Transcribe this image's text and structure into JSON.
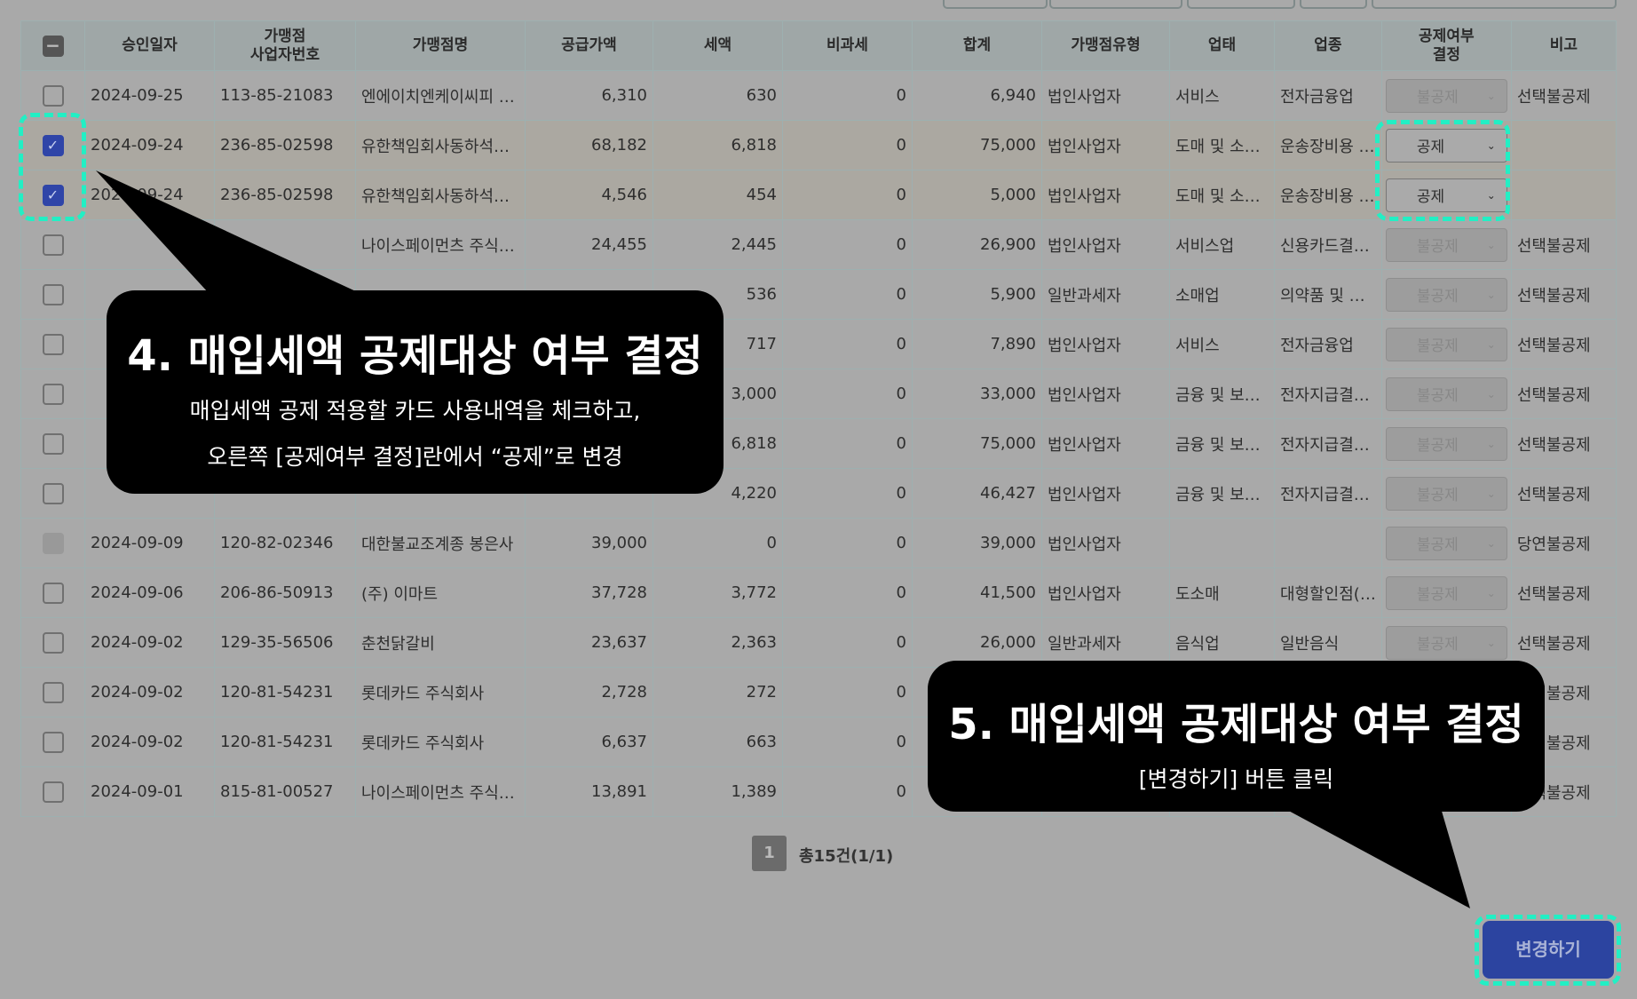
{
  "table": {
    "headers": [
      "",
      "승인일자",
      "가맹점\n사업자번호",
      "가맹점명",
      "공급가액",
      "세액",
      "비과세",
      "합계",
      "가맹점유형",
      "업태",
      "업종",
      "공제여부\n결정",
      "비고"
    ],
    "rows": [
      {
        "checked": false,
        "disabled": false,
        "date": "2024-09-25",
        "bizno": "113-85-21083",
        "name": "엔에이치엔케이씨피 …",
        "supply": "6,310",
        "tax": "630",
        "taxfree": "0",
        "total": "6,940",
        "type": "법인사업자",
        "biz": "서비스",
        "item": "전자금융업",
        "decision": "불공제",
        "decision_enabled": false,
        "note": "선택불공제"
      },
      {
        "checked": true,
        "disabled": false,
        "date": "2024-09-24",
        "bizno": "236-85-02598",
        "name": "유한책임회사동하석…",
        "supply": "68,182",
        "tax": "6,818",
        "taxfree": "0",
        "total": "75,000",
        "type": "법인사업자",
        "biz": "도매 및 소…",
        "item": "운송장비용 …",
        "decision": "공제",
        "decision_enabled": true,
        "note": ""
      },
      {
        "checked": true,
        "disabled": false,
        "date": "2024-09-24",
        "bizno": "236-85-02598",
        "name": "유한책임회사동하석…",
        "supply": "4,546",
        "tax": "454",
        "taxfree": "0",
        "total": "5,000",
        "type": "법인사업자",
        "biz": "도매 및 소…",
        "item": "운송장비용 …",
        "decision": "공제",
        "decision_enabled": true,
        "note": ""
      },
      {
        "checked": false,
        "disabled": false,
        "date": "",
        "bizno": "",
        "name": "나이스페이먼츠 주식…",
        "supply": "24,455",
        "tax": "2,445",
        "taxfree": "0",
        "total": "26,900",
        "type": "법인사업자",
        "biz": "서비스업",
        "item": "신용카드결…",
        "decision": "불공제",
        "decision_enabled": false,
        "note": "선택불공제"
      },
      {
        "checked": false,
        "disabled": false,
        "date": "",
        "bizno": "",
        "name": "",
        "supply": "",
        "tax": "536",
        "taxfree": "0",
        "total": "5,900",
        "type": "일반과세자",
        "biz": "소매업",
        "item": "의약품 및 …",
        "decision": "불공제",
        "decision_enabled": false,
        "note": "선택불공제"
      },
      {
        "checked": false,
        "disabled": false,
        "date": "",
        "bizno": "",
        "name": "",
        "supply": "",
        "tax": "717",
        "taxfree": "0",
        "total": "7,890",
        "type": "법인사업자",
        "biz": "서비스",
        "item": "전자금융업",
        "decision": "불공제",
        "decision_enabled": false,
        "note": "선택불공제"
      },
      {
        "checked": false,
        "disabled": false,
        "date": "",
        "bizno": "",
        "name": "",
        "supply": "",
        "tax": "3,000",
        "taxfree": "0",
        "total": "33,000",
        "type": "법인사업자",
        "biz": "금융 및 보…",
        "item": "전자지급결…",
        "decision": "불공제",
        "decision_enabled": false,
        "note": "선택불공제"
      },
      {
        "checked": false,
        "disabled": false,
        "date": "",
        "bizno": "",
        "name": "",
        "supply": "",
        "tax": "6,818",
        "taxfree": "0",
        "total": "75,000",
        "type": "법인사업자",
        "biz": "금융 및 보…",
        "item": "전자지급결…",
        "decision": "불공제",
        "decision_enabled": false,
        "note": "선택불공제"
      },
      {
        "checked": false,
        "disabled": false,
        "date": "",
        "bizno": "",
        "name": "",
        "supply": "",
        "tax": "4,220",
        "taxfree": "0",
        "total": "46,427",
        "type": "법인사업자",
        "biz": "금융 및 보…",
        "item": "전자지급결…",
        "decision": "불공제",
        "decision_enabled": false,
        "note": "선택불공제"
      },
      {
        "checked": false,
        "disabled": true,
        "date": "2024-09-09",
        "bizno": "120-82-02346",
        "name": "대한불교조계종 봉은사",
        "supply": "39,000",
        "tax": "0",
        "taxfree": "0",
        "total": "39,000",
        "type": "법인사업자",
        "biz": "",
        "item": "",
        "decision": "불공제",
        "decision_enabled": false,
        "note": "당연불공제"
      },
      {
        "checked": false,
        "disabled": false,
        "date": "2024-09-06",
        "bizno": "206-86-50913",
        "name": " (주) 이마트",
        "supply": "37,728",
        "tax": "3,772",
        "taxfree": "0",
        "total": "41,500",
        "type": "법인사업자",
        "biz": "도소매",
        "item": "대형할인점(…",
        "decision": "불공제",
        "decision_enabled": false,
        "note": "선택불공제"
      },
      {
        "checked": false,
        "disabled": false,
        "date": "2024-09-02",
        "bizno": "129-35-56506",
        "name": "춘천닭갈비",
        "supply": "23,637",
        "tax": "2,363",
        "taxfree": "0",
        "total": "26,000",
        "type": "일반과세자",
        "biz": "음식업",
        "item": "일반음식",
        "decision": "불공제",
        "decision_enabled": false,
        "note": "선택불공제"
      },
      {
        "checked": false,
        "disabled": false,
        "date": "2024-09-02",
        "bizno": "120-81-54231",
        "name": "롯데카드 주식회사",
        "supply": "2,728",
        "tax": "272",
        "taxfree": "0",
        "total": "",
        "type": "",
        "biz": "",
        "item": "",
        "decision": "",
        "decision_enabled": false,
        "note": "선택불공제"
      },
      {
        "checked": false,
        "disabled": false,
        "date": "2024-09-02",
        "bizno": "120-81-54231",
        "name": "롯데카드 주식회사",
        "supply": "6,637",
        "tax": "663",
        "taxfree": "0",
        "total": "",
        "type": "",
        "biz": "",
        "item": "",
        "decision": "",
        "decision_enabled": false,
        "note": "선택불공제"
      },
      {
        "checked": false,
        "disabled": false,
        "date": "2024-09-01",
        "bizno": "815-81-00527",
        "name": "나이스페이먼츠 주식…",
        "supply": "13,891",
        "tax": "1,389",
        "taxfree": "0",
        "total": "",
        "type": "",
        "biz": "",
        "item": "",
        "decision": "",
        "decision_enabled": false,
        "note": "선택불공제"
      }
    ]
  },
  "pagination": {
    "current": "1",
    "summary": "총15건(1/1)"
  },
  "apply_button": "변경하기",
  "callouts": {
    "step4": {
      "title": "4. 매입세액 공제대상 여부 결정",
      "line1": "매입세액 공제 적용할 카드 사용내역을 체크하고,",
      "line2": "오른쪽 [공제여부 결정]란에서 “공제”로 변경"
    },
    "step5": {
      "title": "5. 매입세액 공제대상 여부 결정",
      "line1": "[변경하기] 버튼 클릭"
    }
  },
  "icons": {
    "check": "check-icon",
    "minus": "minus-icon",
    "chevron": "chevron-down-icon"
  },
  "colors": {
    "highlight": "#22efc4",
    "primary": "#2c44a0",
    "overlay_callout": "#000000"
  }
}
